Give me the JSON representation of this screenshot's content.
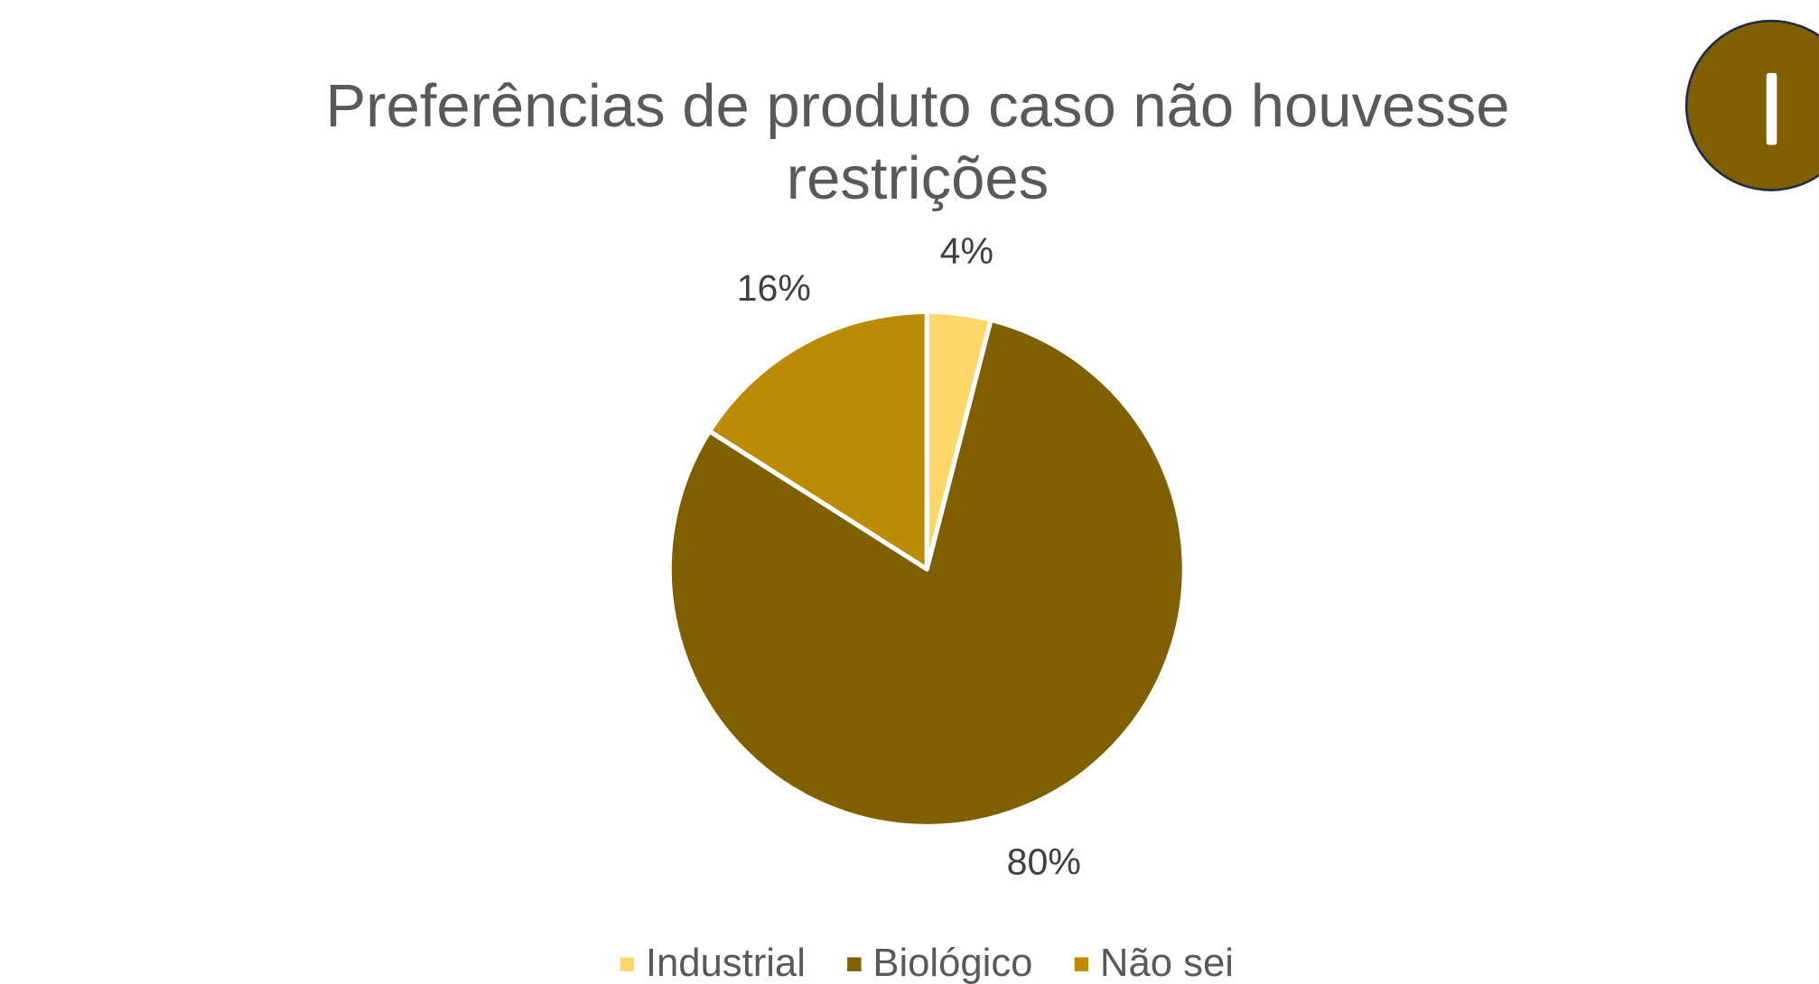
{
  "chart_data": {
    "type": "pie",
    "title": "Preferências de produto caso não houvesse restrições",
    "categories": [
      "Industrial",
      "Biológico",
      "Não sei"
    ],
    "values": [
      4,
      80,
      16
    ],
    "value_labels": [
      "4%",
      "80%",
      "16%"
    ],
    "colors": [
      "#fdd76a",
      "#7f5f00",
      "#bb8b03"
    ],
    "legend": "bottom"
  }
}
